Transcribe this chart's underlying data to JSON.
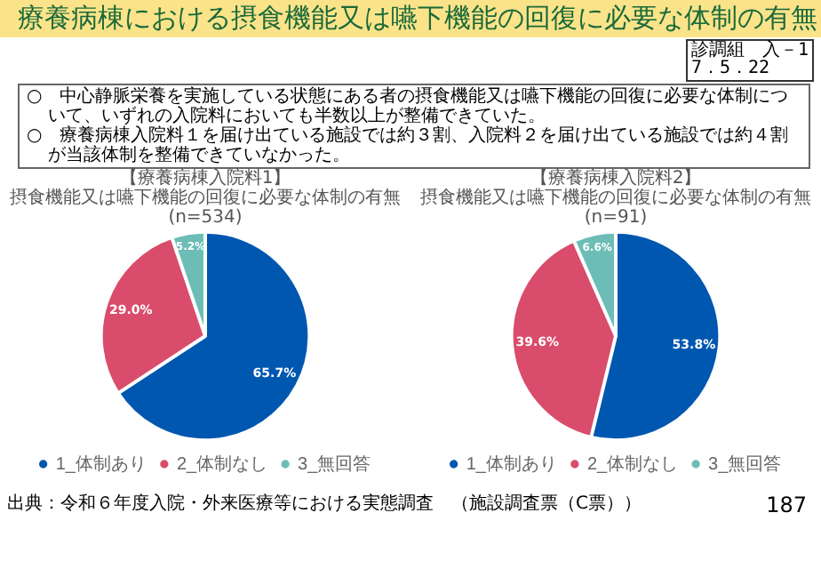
{
  "chart_data": [
    {
      "type": "pie",
      "title": "【療養病棟入院料1】",
      "subtitle": "摂食機能又は嚥下機能の回復に必要な体制の有無",
      "categories": [
        "1_体制あり",
        "2_体制なし",
        "3_無回答"
      ],
      "values": [
        65.7,
        29.0,
        5.2
      ],
      "value_labels": [
        "65.7%",
        "29.0%",
        "5.2%"
      ],
      "colors": [
        "#0057b0",
        "#d94c6b",
        "#6dbdb7"
      ],
      "legend": "bottom",
      "annotations": [
        "療養病棟における摂食機能又は嚥下機能の回復に必要な体制の有無",
        "診調組　入－1\n7．5．22",
        "○　中心静脈栄養を実施している状態にある者の摂食機能又は嚥下機能の回復に必要な体制について、いずれの入院料においても半数以上が整備できていた。",
        "○　療養病棟入院料１を届け出ている施設では約３割、入院料２を届け出ている施設では約４割が当該体制を整備できていなかった。",
        "(n=534)"
      ]
    },
    {
      "type": "pie",
      "title": "【療養病棟入院料2】",
      "subtitle": "摂食機能又は嚥下機能の回復に必要な体制の有無",
      "categories": [
        "1_体制あり",
        "2_体制なし",
        "3_無回答"
      ],
      "values": [
        53.8,
        39.6,
        6.6
      ],
      "value_labels": [
        "53.8%",
        "39.6%",
        "6.6%"
      ],
      "colors": [
        "#0057b0",
        "#d94c6b",
        "#6dbdb7"
      ],
      "legend": "bottom",
      "annotations": [
        "(n=91)",
        "出典：令和６年度入院・外来医療等における実態調査　（施設調査票（C票））",
        "187"
      ]
    }
  ]
}
